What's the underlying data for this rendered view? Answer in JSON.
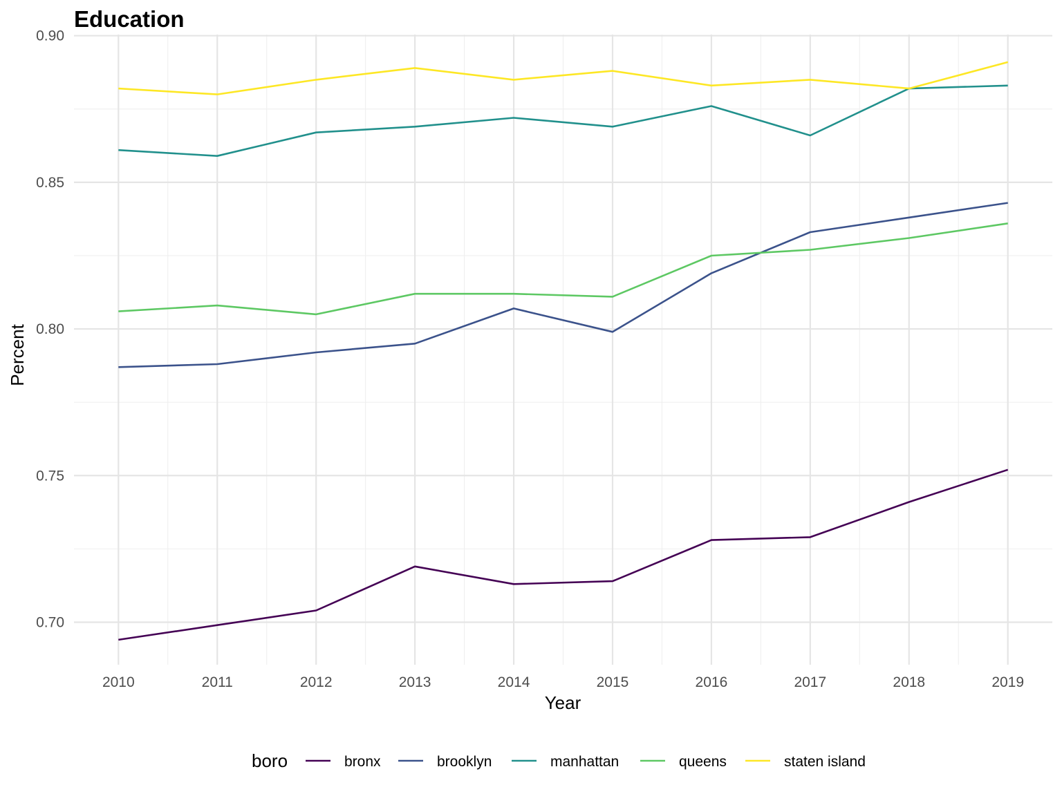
{
  "chart_data": {
    "type": "line",
    "title": "Education",
    "xlabel": "Year",
    "ylabel": "Percent",
    "x": [
      2010,
      2011,
      2012,
      2013,
      2014,
      2015,
      2016,
      2017,
      2018,
      2019
    ],
    "x_ticks": [
      "2010",
      "2011",
      "2012",
      "2013",
      "2014",
      "2015",
      "2016",
      "2017",
      "2018",
      "2019"
    ],
    "y_ticks": [
      "0.70",
      "0.75",
      "0.80",
      "0.85",
      "0.90"
    ],
    "y_tick_values": [
      0.7,
      0.75,
      0.8,
      0.85,
      0.9
    ],
    "ylim": [
      0.6855,
      0.9004
    ],
    "xlim": [
      2009.55,
      2019.45
    ],
    "grid": true,
    "legend": {
      "title": "boro",
      "position": "bottom"
    },
    "series": [
      {
        "name": "bronx",
        "color": "#440154",
        "values": [
          0.694,
          0.699,
          0.704,
          0.719,
          0.713,
          0.714,
          0.728,
          0.729,
          0.741,
          0.752
        ]
      },
      {
        "name": "brooklyn",
        "color": "#3B528B",
        "values": [
          0.787,
          0.788,
          0.792,
          0.795,
          0.807,
          0.799,
          0.819,
          0.833,
          0.838,
          0.843
        ]
      },
      {
        "name": "manhattan",
        "color": "#21908C",
        "values": [
          0.861,
          0.859,
          0.867,
          0.869,
          0.872,
          0.869,
          0.876,
          0.866,
          0.882,
          0.883
        ]
      },
      {
        "name": "queens",
        "color": "#5DC863",
        "values": [
          0.806,
          0.808,
          0.805,
          0.812,
          0.812,
          0.811,
          0.825,
          0.827,
          0.831,
          0.836
        ]
      },
      {
        "name": "staten island",
        "color": "#FDE725",
        "values": [
          0.882,
          0.88,
          0.885,
          0.889,
          0.885,
          0.888,
          0.883,
          0.885,
          0.882,
          0.891
        ]
      }
    ]
  }
}
